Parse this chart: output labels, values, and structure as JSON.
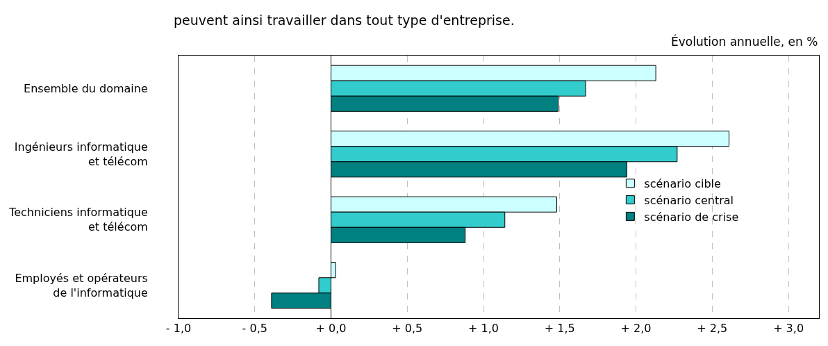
{
  "chart_data": {
    "type": "bar",
    "orientation": "horizontal",
    "xlabel": "Évolution annuelle, en %",
    "annotations": [
      "peuvent ainsi travailler dans tout type d'entreprise."
    ],
    "categories": [
      "Ensemble du domaine",
      "Ingénieurs informatique\net télécom",
      "Techniciens informatique\net télécom",
      "Employés et opérateurs\nde l'informatique"
    ],
    "series": [
      {
        "name": "scénario cible",
        "color": "#ccffff",
        "values": [
          2.13,
          2.61,
          1.48,
          0.03
        ]
      },
      {
        "name": "scénario central",
        "color": "#33cccc",
        "values": [
          1.67,
          2.27,
          1.14,
          -0.08
        ]
      },
      {
        "name": "scénario de crise",
        "color": "#008080",
        "values": [
          1.49,
          1.94,
          0.88,
          -0.39
        ]
      }
    ],
    "xlim": [
      -1,
      3.2
    ],
    "xticks": [
      {
        "value": -1,
        "label": "- 1,0"
      },
      {
        "value": -0.5,
        "label": "- 0,5"
      },
      {
        "value": 0,
        "label": "+ 0,0"
      },
      {
        "value": 0.5,
        "label": "+ 0,5"
      },
      {
        "value": 1,
        "label": "+ 1,0"
      },
      {
        "value": 1.5,
        "label": "+ 1,5"
      },
      {
        "value": 2,
        "label": "+ 2,0"
      },
      {
        "value": 2.5,
        "label": "+ 2,5"
      },
      {
        "value": 3,
        "label": "+ 3,0"
      }
    ],
    "grid": "x",
    "legend": "right"
  }
}
